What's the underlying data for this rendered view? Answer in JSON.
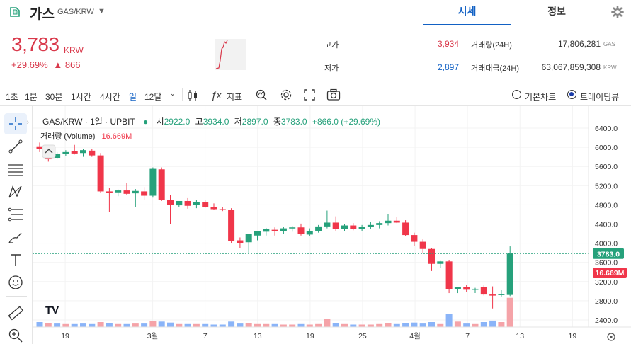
{
  "header": {
    "coin_name": "가스",
    "pair": "GAS/KRW",
    "tabs": [
      "시세",
      "정보"
    ]
  },
  "ticker": {
    "price": "3,783",
    "unit": "KRW",
    "change_pct": "+29.69%",
    "change_arrow": "▲",
    "change_abs": "866",
    "high_label": "고가",
    "high_value": "3,934",
    "low_label": "저가",
    "low_value": "2,897",
    "volume_label": "거래량(24H)",
    "volume_value": "17,806,281",
    "volume_unit": "GAS",
    "amount_label": "거래대금(24H)",
    "amount_value": "63,067,859,308",
    "amount_unit": "KRW"
  },
  "toolbar": {
    "intervals": [
      "1초",
      "1분",
      "30분",
      "1시간",
      "4시간",
      "일",
      "12달"
    ],
    "selected_interval": "일",
    "indicator_label": "지표",
    "chart_modes": [
      "기본차트",
      "트레이딩뷰"
    ],
    "selected_mode": "트레이딩뷰"
  },
  "legend": {
    "symbol": "GAS/KRW · 1일 · UPBIT",
    "o_label": "시",
    "o_value": "2922.0",
    "h_label": "고",
    "h_value": "3934.0",
    "l_label": "저",
    "l_value": "2897.0",
    "c_label": "종",
    "c_value": "3783.0",
    "change": "+866.0 (+29.69%)",
    "volume_label": "거래량 (Volume)",
    "volume_value": "16.669M"
  },
  "watermark": "TV",
  "price_badge": "3783.0",
  "volume_badge": "16.669M",
  "colors": {
    "up": "#26a17b",
    "down": "#f0364a",
    "vol_up": "#f5a3a8",
    "vol_down": "#8ab4f8",
    "accent": "#1261c4"
  },
  "chart_data": {
    "type": "candlestick",
    "x_tick_labels": [
      "19",
      "3월",
      "7",
      "13",
      "19",
      "25",
      "4월",
      "7",
      "13",
      "19"
    ],
    "y_tick_labels": [
      "6400.0",
      "6000.0",
      "5600.0",
      "5200.0",
      "4800.0",
      "4400.0",
      "4000.0",
      "3600.0",
      "3200.0",
      "2800.0",
      "2400.0"
    ],
    "ylim": [
      2300,
      6600
    ],
    "candles": [
      [
        6020,
        6100,
        5900,
        5960
      ],
      [
        5960,
        6010,
        5700,
        5750
      ],
      [
        5780,
        5900,
        5760,
        5860
      ],
      [
        5860,
        5940,
        5820,
        5900
      ],
      [
        5920,
        6050,
        5850,
        5870
      ],
      [
        5880,
        5970,
        5800,
        5940
      ],
      [
        5930,
        5960,
        5800,
        5830
      ],
      [
        5830,
        5880,
        5050,
        5080
      ],
      [
        5080,
        5150,
        4650,
        5050
      ],
      [
        5060,
        5120,
        4980,
        5100
      ],
      [
        5100,
        5260,
        5000,
        5030
      ],
      [
        5040,
        5130,
        4750,
        5090
      ],
      [
        5080,
        5170,
        4900,
        4990
      ],
      [
        4990,
        5580,
        4950,
        5550
      ],
      [
        5540,
        5580,
        4880,
        4900
      ],
      [
        4900,
        5000,
        4400,
        4800
      ],
      [
        4790,
        4880,
        4750,
        4880
      ],
      [
        4880,
        4940,
        4720,
        4780
      ],
      [
        4800,
        4900,
        4730,
        4860
      ],
      [
        4850,
        4900,
        4740,
        4760
      ],
      [
        4760,
        4830,
        4700,
        4710
      ],
      [
        4710,
        4760,
        4670,
        4700
      ],
      [
        4700,
        4730,
        4000,
        4050
      ],
      [
        4060,
        4120,
        3900,
        4000
      ],
      [
        4020,
        4200,
        3780,
        4200
      ],
      [
        4160,
        4260,
        4060,
        4250
      ],
      [
        4240,
        4320,
        4160,
        4290
      ],
      [
        4280,
        4330,
        4160,
        4250
      ],
      [
        4250,
        4340,
        4200,
        4310
      ],
      [
        4310,
        4360,
        4240,
        4330
      ],
      [
        4330,
        4410,
        4160,
        4190
      ],
      [
        4180,
        4310,
        4150,
        4260
      ],
      [
        4260,
        4380,
        4220,
        4350
      ],
      [
        4350,
        4680,
        4310,
        4430
      ],
      [
        4430,
        4560,
        4260,
        4300
      ],
      [
        4300,
        4400,
        4260,
        4370
      ],
      [
        4370,
        4420,
        4270,
        4300
      ],
      [
        4300,
        4380,
        4260,
        4340
      ],
      [
        4340,
        4450,
        4300,
        4380
      ],
      [
        4380,
        4460,
        4310,
        4420
      ],
      [
        4420,
        4600,
        4370,
        4470
      ],
      [
        4470,
        4540,
        4420,
        4430
      ],
      [
        4430,
        4480,
        4150,
        4170
      ],
      [
        4170,
        4220,
        3940,
        4030
      ],
      [
        4030,
        4080,
        3800,
        3880
      ],
      [
        3880,
        3900,
        3420,
        3570
      ],
      [
        3570,
        3630,
        3490,
        3620
      ],
      [
        3620,
        3640,
        2960,
        3040
      ],
      [
        3040,
        3090,
        2960,
        3080
      ],
      [
        3080,
        3130,
        2980,
        3030
      ],
      [
        3030,
        3070,
        2960,
        3050
      ],
      [
        3080,
        3120,
        2910,
        2930
      ],
      [
        2930,
        3100,
        2640,
        2920
      ],
      [
        2920,
        3020,
        2890,
        2940
      ],
      [
        2922,
        3934,
        2897,
        3783
      ]
    ],
    "volume": [
      {
        "v": 0.1,
        "up": false
      },
      {
        "v": 0.08,
        "up": true
      },
      {
        "v": 0.07,
        "up": false
      },
      {
        "v": 0.06,
        "up": true
      },
      {
        "v": 0.06,
        "up": false
      },
      {
        "v": 0.07,
        "up": false
      },
      {
        "v": 0.06,
        "up": false
      },
      {
        "v": 0.1,
        "up": true
      },
      {
        "v": 0.08,
        "up": false
      },
      {
        "v": 0.06,
        "up": true
      },
      {
        "v": 0.06,
        "up": false
      },
      {
        "v": 0.07,
        "up": true
      },
      {
        "v": 0.07,
        "up": false
      },
      {
        "v": 0.12,
        "up": true
      },
      {
        "v": 0.11,
        "up": false
      },
      {
        "v": 0.09,
        "up": false
      },
      {
        "v": 0.06,
        "up": true
      },
      {
        "v": 0.06,
        "up": false
      },
      {
        "v": 0.06,
        "up": true
      },
      {
        "v": 0.06,
        "up": false
      },
      {
        "v": 0.05,
        "up": false
      },
      {
        "v": 0.05,
        "up": false
      },
      {
        "v": 0.11,
        "up": false
      },
      {
        "v": 0.07,
        "up": false
      },
      {
        "v": 0.08,
        "up": true
      },
      {
        "v": 0.06,
        "up": true
      },
      {
        "v": 0.06,
        "up": true
      },
      {
        "v": 0.06,
        "up": false
      },
      {
        "v": 0.05,
        "up": true
      },
      {
        "v": 0.05,
        "up": true
      },
      {
        "v": 0.06,
        "up": false
      },
      {
        "v": 0.05,
        "up": true
      },
      {
        "v": 0.06,
        "up": true
      },
      {
        "v": 0.16,
        "up": true
      },
      {
        "v": 0.08,
        "up": false
      },
      {
        "v": 0.06,
        "up": true
      },
      {
        "v": 0.05,
        "up": false
      },
      {
        "v": 0.05,
        "up": true
      },
      {
        "v": 0.05,
        "up": true
      },
      {
        "v": 0.06,
        "up": true
      },
      {
        "v": 0.08,
        "up": true
      },
      {
        "v": 0.06,
        "up": false
      },
      {
        "v": 0.08,
        "up": false
      },
      {
        "v": 0.09,
        "up": false
      },
      {
        "v": 0.07,
        "up": false
      },
      {
        "v": 0.1,
        "up": false
      },
      {
        "v": 0.06,
        "up": true
      },
      {
        "v": 0.27,
        "up": false
      },
      {
        "v": 0.11,
        "up": true
      },
      {
        "v": 0.07,
        "up": false
      },
      {
        "v": 0.06,
        "up": true
      },
      {
        "v": 0.1,
        "up": false
      },
      {
        "v": 0.13,
        "up": false
      },
      {
        "v": 0.1,
        "up": true
      },
      {
        "v": 0.59,
        "up": true
      }
    ]
  }
}
